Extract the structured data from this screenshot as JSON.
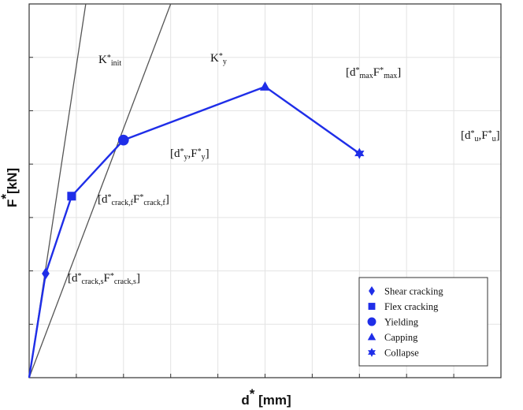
{
  "chart_data": {
    "type": "line",
    "xlabel": {
      "base": "d",
      "sup": "*",
      "rest": " [mm]"
    },
    "ylabel": {
      "base": "F",
      "sup": "*",
      "rest": "[kN]"
    },
    "xlim": [
      0,
      10
    ],
    "ylim": [
      0,
      7
    ],
    "x_ticks": [
      0,
      1,
      2,
      3,
      4,
      5,
      6,
      7,
      8,
      9,
      10
    ],
    "y_ticks": [
      0,
      1,
      2,
      3,
      4,
      5,
      6,
      7
    ],
    "grid": true,
    "legend_position": "bottom-right",
    "series": [
      {
        "color": "#1f2ee8",
        "points": [
          {
            "x": 0.0,
            "y": 0.0,
            "marker": "none"
          },
          {
            "x": 0.35,
            "y": 1.95,
            "marker": "diamond"
          },
          {
            "x": 0.9,
            "y": 3.4,
            "marker": "square"
          },
          {
            "x": 2.0,
            "y": 4.45,
            "marker": "circle"
          },
          {
            "x": 5.0,
            "y": 5.45,
            "marker": "triangle"
          },
          {
            "x": 7.0,
            "y": 4.2,
            "marker": "star"
          }
        ]
      }
    ],
    "stiffness_lines": [
      {
        "label": {
          "base": "K",
          "sup": "*",
          "sub": "init"
        },
        "from": [
          0,
          0
        ],
        "to": [
          1.2,
          7.0
        ],
        "color": "#555555"
      },
      {
        "label": {
          "base": "K",
          "sup": "*",
          "sub": "y"
        },
        "from": [
          0,
          0
        ],
        "to": [
          3.0,
          7.0
        ],
        "color": "#555555"
      }
    ],
    "point_annotations": [
      {
        "point_index": 1,
        "parts": [
          [
            "[d",
            "n"
          ],
          [
            "*",
            "sup"
          ],
          [
            "crack,s",
            "sub"
          ],
          [
            "F",
            "n"
          ],
          [
            "*",
            "sup"
          ],
          [
            "crack,s",
            "sub"
          ],
          [
            "]",
            "n"
          ]
        ]
      },
      {
        "point_index": 2,
        "parts": [
          [
            "[d",
            "n"
          ],
          [
            "*",
            "sup"
          ],
          [
            "crack,f",
            "sub"
          ],
          [
            "F",
            "n"
          ],
          [
            "*",
            "sup"
          ],
          [
            "crack,f",
            "sub"
          ],
          [
            "]",
            "n"
          ]
        ]
      },
      {
        "point_index": 3,
        "parts": [
          [
            "[d",
            "n"
          ],
          [
            "*",
            "sup"
          ],
          [
            "y",
            "sub"
          ],
          [
            ",F",
            "n"
          ],
          [
            "*",
            "sup"
          ],
          [
            "y",
            "sub"
          ],
          [
            "]",
            "n"
          ]
        ]
      },
      {
        "point_index": 4,
        "parts": [
          [
            "[d",
            "n"
          ],
          [
            "*",
            "sup"
          ],
          [
            "max",
            "sub"
          ],
          [
            "F",
            "n"
          ],
          [
            "*",
            "sup"
          ],
          [
            "max",
            "sub"
          ],
          [
            "]",
            "n"
          ]
        ]
      },
      {
        "point_index": 5,
        "parts": [
          [
            "[d",
            "n"
          ],
          [
            "*",
            "sup"
          ],
          [
            "u",
            "sub"
          ],
          [
            ",F",
            "n"
          ],
          [
            "*",
            "sup"
          ],
          [
            "u",
            "sub"
          ],
          [
            "]",
            "n"
          ]
        ]
      }
    ],
    "legend": [
      {
        "marker": "diamond",
        "label": "Shear cracking"
      },
      {
        "marker": "square",
        "label": "Flex cracking"
      },
      {
        "marker": "circle",
        "label": "Yielding"
      },
      {
        "marker": "triangle",
        "label": "Capping"
      },
      {
        "marker": "star",
        "label": "Collapse"
      }
    ]
  }
}
